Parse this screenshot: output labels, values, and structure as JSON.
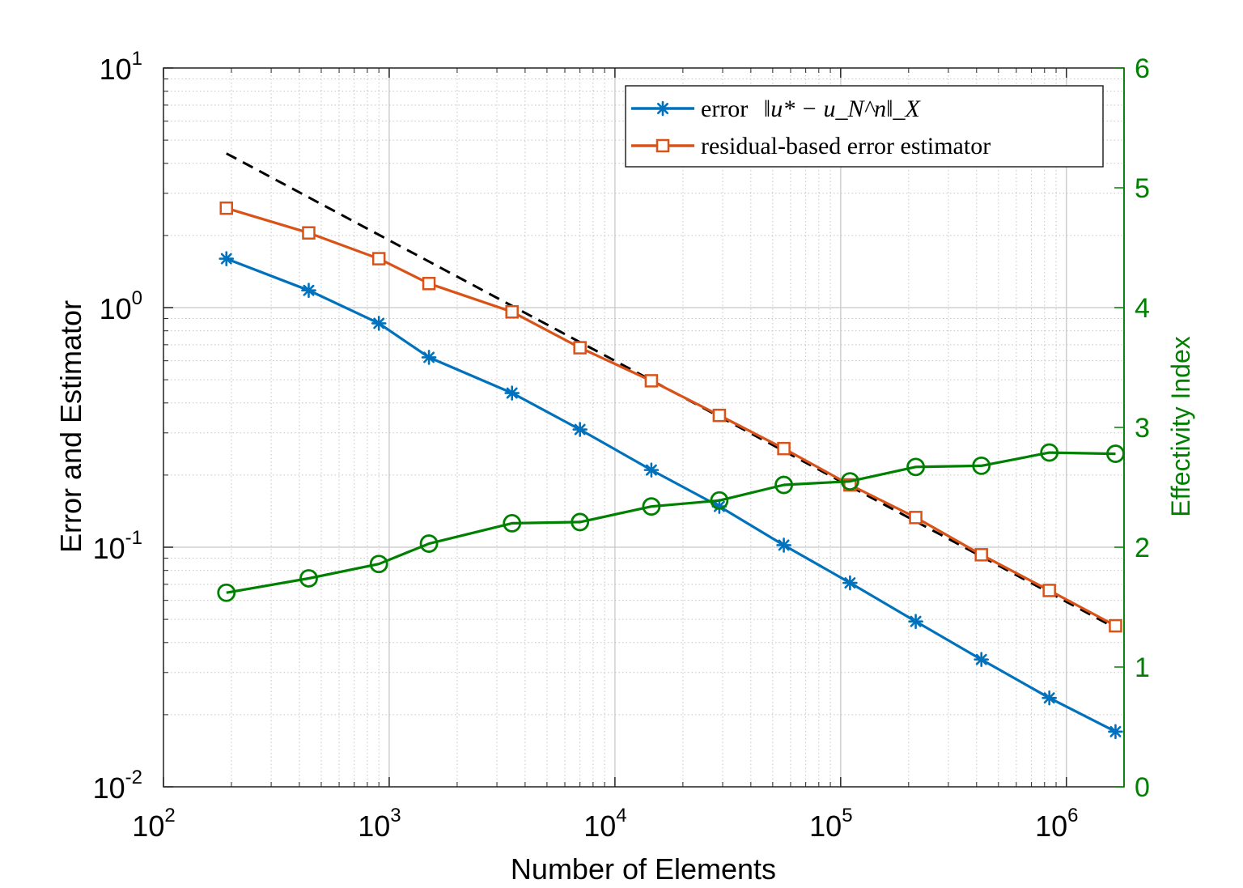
{
  "chart_data": {
    "type": "line",
    "title": "",
    "xlabel": "Number of Elements",
    "ylabel_left": "Error and Estimator",
    "ylabel_right": "Effectivity Index",
    "xscale": "log",
    "yscale_left": "log",
    "xlim": [
      100,
      1800000
    ],
    "ylim_left": [
      0.01,
      10
    ],
    "ylim_right": [
      0,
      6
    ],
    "grid": true,
    "minor_grid": true,
    "legend_location": "top-right",
    "x_ticks": [
      {
        "base": "10",
        "exp": "2",
        "value": 100
      },
      {
        "base": "10",
        "exp": "3",
        "value": 1000
      },
      {
        "base": "10",
        "exp": "4",
        "value": 10000
      },
      {
        "base": "10",
        "exp": "5",
        "value": 100000
      },
      {
        "base": "10",
        "exp": "6",
        "value": 1000000
      }
    ],
    "y_left_ticks": [
      {
        "base": "10",
        "exp": "-2",
        "value": 0.01
      },
      {
        "base": "10",
        "exp": "-1",
        "value": 0.1
      },
      {
        "base": "10",
        "exp": "0",
        "value": 1
      },
      {
        "base": "10",
        "exp": "1",
        "value": 10
      }
    ],
    "y_right_ticks": [
      {
        "label": "0",
        "value": 0
      },
      {
        "label": "1",
        "value": 1
      },
      {
        "label": "2",
        "value": 2
      },
      {
        "label": "3",
        "value": 3
      },
      {
        "label": "4",
        "value": 4
      },
      {
        "label": "5",
        "value": 5
      },
      {
        "label": "6",
        "value": 6
      }
    ],
    "x": [
      190,
      440,
      900,
      1500,
      3500,
      7000,
      14500,
      29000,
      56000,
      110000,
      215000,
      420000,
      840000,
      1650000
    ],
    "series": [
      {
        "name": "error",
        "legend_prefix": "error",
        "legend_math": "‖u* − u_N^n‖_X",
        "axis": "left",
        "color": "#0072BD",
        "marker": "asterisk",
        "values": [
          1.6,
          1.18,
          0.86,
          0.62,
          0.44,
          0.31,
          0.21,
          0.148,
          0.102,
          0.071,
          0.049,
          0.034,
          0.0235,
          0.017
        ]
      },
      {
        "name": "residual-based error estimator",
        "axis": "left",
        "color": "#D95319",
        "marker": "square",
        "values": [
          2.6,
          2.05,
          1.6,
          1.26,
          0.96,
          0.68,
          0.495,
          0.355,
          0.258,
          0.182,
          0.133,
          0.093,
          0.066,
          0.047
        ]
      },
      {
        "name": "effectivity index",
        "axis": "right",
        "color": "#008000",
        "marker": "circle",
        "values": [
          1.62,
          1.74,
          1.86,
          2.03,
          2.2,
          2.21,
          2.34,
          2.39,
          2.52,
          2.55,
          2.67,
          2.68,
          2.79,
          2.78
        ]
      }
    ],
    "reference_line": {
      "style": "dashed",
      "color": "#000000",
      "axis": "left",
      "x": [
        190,
        1650000
      ],
      "y": [
        4.4,
        0.046
      ]
    },
    "legend_entries": [
      {
        "prefix": "error",
        "math": "‖u* − u_N^n‖_X"
      },
      {
        "label": "residual-based error estimator"
      }
    ]
  }
}
